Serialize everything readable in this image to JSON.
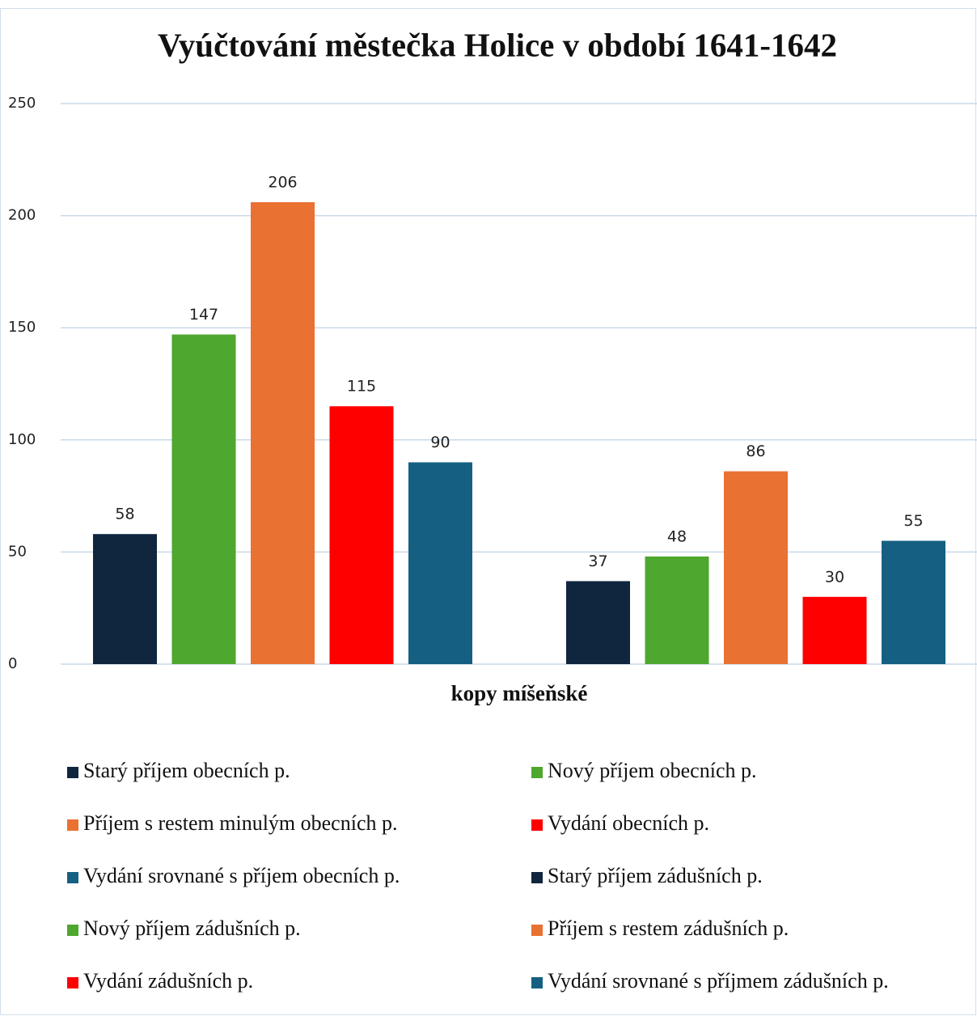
{
  "chart_data": {
    "type": "bar",
    "title": "Vyúčtování městečka Holice v období 1641-1642",
    "x_label": "kopy míšeňské",
    "categories": [
      null
    ],
    "series": [
      {
        "name": "Starý příjem obecních p.",
        "color": "#10263f",
        "values": [
          58
        ]
      },
      {
        "name": "Nový příjem obecních p.",
        "color": "#4ea72e",
        "values": [
          147
        ]
      },
      {
        "name": "Příjem s restem minulým obecních p.",
        "color": "#e97132",
        "values": [
          206
        ]
      },
      {
        "name": "Vydání obecních p.",
        "color": "#ff0000",
        "values": [
          115
        ]
      },
      {
        "name": "Vydání srovnané s příjem obecních p.",
        "color": "#156082",
        "values": [
          90
        ]
      },
      {
        "name": "Starý příjem zádušních p.",
        "color": "#10263f",
        "values": [
          37
        ]
      },
      {
        "name": "Nový příjem zádušních p.",
        "color": "#4ea72e",
        "values": [
          48
        ]
      },
      {
        "name": "Příjem s restem zádušních p.",
        "color": "#e97132",
        "values": [
          86
        ]
      },
      {
        "name": "Vydání zádušních p.",
        "color": "#ff0000",
        "values": [
          30
        ]
      },
      {
        "name": "Vydání srovnané s příjmem zádušních p.",
        "color": "#156082",
        "values": [
          55
        ]
      }
    ],
    "ylim": [
      0,
      250
    ],
    "yticks": [
      0,
      50,
      100,
      150,
      200,
      250
    ],
    "grid": true,
    "legend": "bottom"
  }
}
